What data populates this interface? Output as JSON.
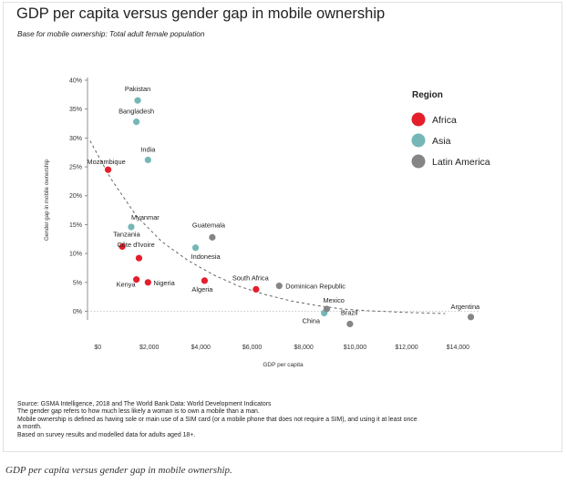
{
  "title": "GDP per capita versus gender gap in mobile ownership",
  "subtitle": "Base for mobile ownership: Total adult female population",
  "notes": [
    "Source: GSMA Intelligence, 2018 and The World Bank Data: World Development Indicators",
    "The gender gap refers to how much less likely a woman is to own a mobile than a man.",
    "Mobile ownership is defined as having sole or main use of a SIM card (or a mobile phone that does not require a SIM), and using it at least once a month.",
    "Based on survey results and modelled data for adults aged 18+."
  ],
  "caption": "GDP per capita versus gender gap in mobile ownership.",
  "chart_data": {
    "type": "scatter",
    "xlabel": "GDP per capita",
    "ylabel": "Gender gap in mobile ownership",
    "xlim": [
      -400,
      14800
    ],
    "ylim": [
      -1.5,
      40
    ],
    "xticks": [
      0,
      2000,
      4000,
      6000,
      8000,
      10000,
      12000,
      14000
    ],
    "xtick_labels": [
      "$0",
      "$2,000",
      "$4,000",
      "$6,000",
      "$8,000",
      "$10,000",
      "$12,000",
      "$14,000"
    ],
    "yticks": [
      0,
      5,
      10,
      15,
      20,
      25,
      30,
      35,
      40
    ],
    "ytick_labels": [
      "0%",
      "5%",
      "10%",
      "15%",
      "20%",
      "25%",
      "30%",
      "35%",
      "40%"
    ],
    "legend_title": "Region",
    "legend_position": "top-right",
    "series": [
      {
        "name": "Africa",
        "color": "#e41f2b",
        "points": [
          {
            "label": "Mozambique",
            "x": 400,
            "y": 24.5
          },
          {
            "label": "Tanzania",
            "x": 950,
            "y": 11.2
          },
          {
            "label": "Côte d'Ivoire",
            "x": 1600,
            "y": 9.2
          },
          {
            "label": "Kenya",
            "x": 1500,
            "y": 5.5
          },
          {
            "label": "Nigeria",
            "x": 1950,
            "y": 5.0
          },
          {
            "label": "Algeria",
            "x": 4150,
            "y": 5.3
          },
          {
            "label": "South Africa",
            "x": 6150,
            "y": 3.8
          }
        ]
      },
      {
        "name": "Asia",
        "color": "#74b7b6",
        "points": [
          {
            "label": "Pakistan",
            "x": 1550,
            "y": 36.5
          },
          {
            "label": "Bangladesh",
            "x": 1500,
            "y": 32.8
          },
          {
            "label": "India",
            "x": 1950,
            "y": 26.2
          },
          {
            "label": "Myanmar",
            "x": 1300,
            "y": 14.6
          },
          {
            "label": "Indonesia",
            "x": 3800,
            "y": 11.0
          },
          {
            "label": "China",
            "x": 8800,
            "y": -0.3
          }
        ]
      },
      {
        "name": "Latin America",
        "color": "#858585",
        "points": [
          {
            "label": "Guatemala",
            "x": 4450,
            "y": 12.8
          },
          {
            "label": "Dominican Republic",
            "x": 7050,
            "y": 4.4
          },
          {
            "label": "Mexico",
            "x": 8900,
            "y": 0.4
          },
          {
            "label": "Brazil",
            "x": 9800,
            "y": -2.2
          },
          {
            "label": "Argentina",
            "x": 14500,
            "y": -1.0
          }
        ]
      }
    ],
    "trendline": {
      "style": "dashed",
      "points": [
        [
          -300,
          29.5
        ],
        [
          500,
          23
        ],
        [
          1500,
          16.5
        ],
        [
          2500,
          12
        ],
        [
          3500,
          8.8
        ],
        [
          4500,
          6.3
        ],
        [
          5500,
          4.3
        ],
        [
          6500,
          2.9
        ],
        [
          7500,
          1.8
        ],
        [
          8500,
          1.0
        ],
        [
          9500,
          0.4
        ],
        [
          10500,
          0.1
        ],
        [
          12000,
          -0.2
        ],
        [
          13500,
          -0.4
        ]
      ]
    }
  }
}
